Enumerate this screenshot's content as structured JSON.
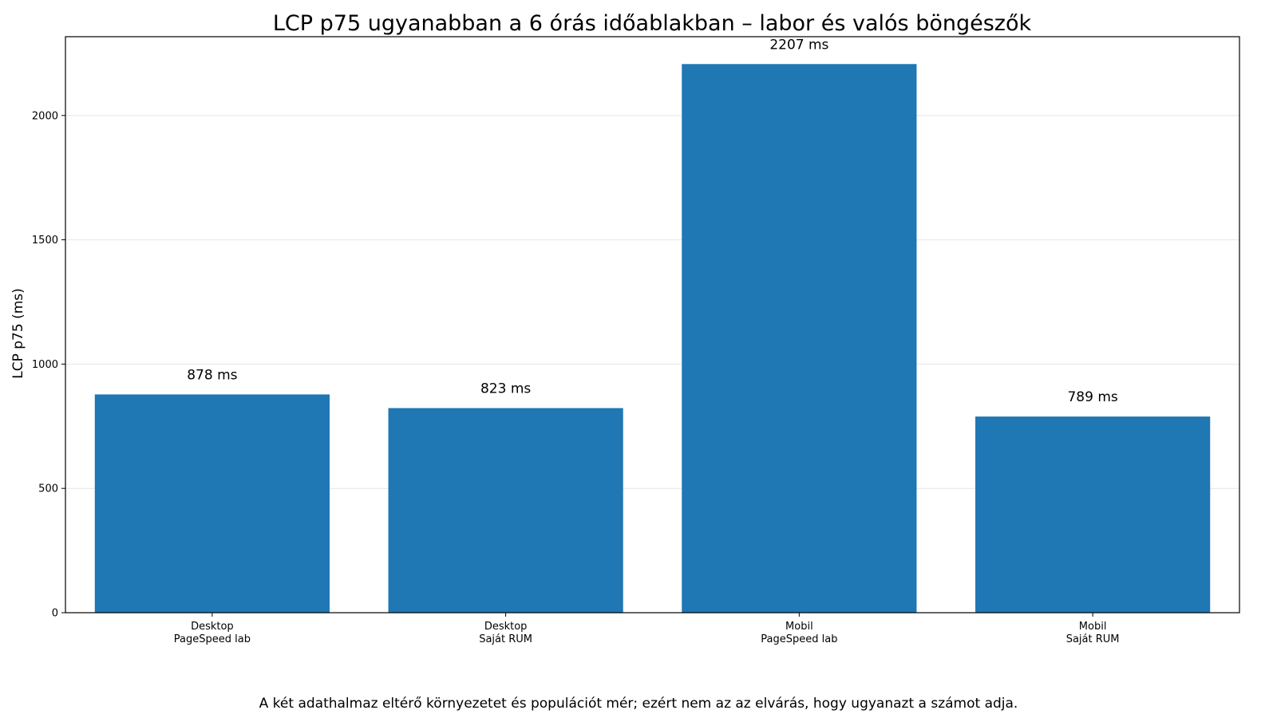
{
  "chart_data": {
    "type": "bar",
    "title": "LCP p75 ugyanabban a 6 órás időablakban – labor és valós böngészők",
    "ylabel": "LCP p75 (ms)",
    "xlabel": "",
    "categories": [
      [
        "Desktop",
        "PageSpeed lab"
      ],
      [
        "Desktop",
        "Saját RUM"
      ],
      [
        "Mobil",
        "PageSpeed lab"
      ],
      [
        "Mobil",
        "Saját RUM"
      ]
    ],
    "values": [
      878,
      823,
      2207,
      789
    ],
    "data_labels": [
      "878 ms",
      "823 ms",
      "2207 ms",
      "789 ms"
    ],
    "ylim": [
      0,
      2317
    ],
    "yticks": [
      0,
      500,
      1000,
      1500,
      2000
    ],
    "grid": "y",
    "bar_color": "#1f77b4"
  },
  "caption": "A két adathalmaz eltérő környezetet és populációt mér; ezért nem az az elvárás, hogy ugyanazt a számot adja."
}
